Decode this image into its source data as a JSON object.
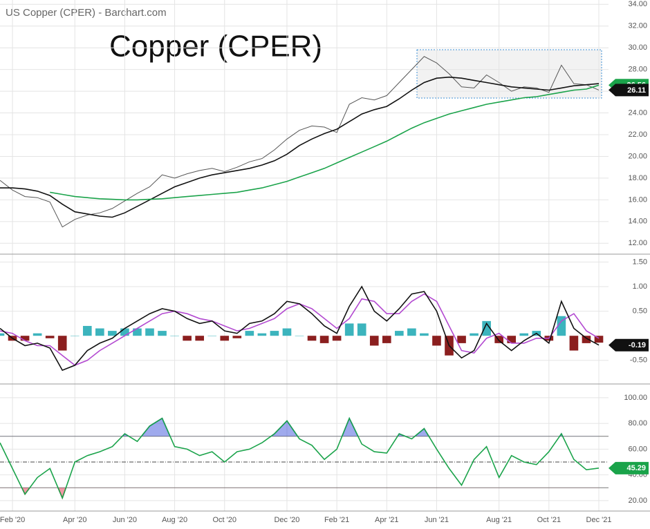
{
  "chart_data": [
    {
      "type": "line",
      "title": "US Copper (CPER) - Barchart.com",
      "annotation": "Copper (CPER)",
      "ylim": [
        11,
        34.4
      ],
      "yticks": [
        {
          "value": 12,
          "label": "12.00"
        },
        {
          "value": 14,
          "label": "14.00"
        },
        {
          "value": 16,
          "label": "16.00"
        },
        {
          "value": 18,
          "label": "18.00"
        },
        {
          "value": 20,
          "label": "20.00"
        },
        {
          "value": 22,
          "label": "22.00"
        },
        {
          "value": 24,
          "label": "24.00"
        },
        {
          "value": 26,
          "label": "26.00"
        },
        {
          "value": 28,
          "label": "28.00"
        },
        {
          "value": 30,
          "label": "30.00"
        },
        {
          "value": 32,
          "label": "32.00"
        },
        {
          "value": 34,
          "label": "34.00"
        }
      ],
      "grid": true,
      "series": [
        {
          "color": "#555555",
          "values": [
            17.8,
            16.9,
            16.3,
            16.2,
            15.8,
            13.5,
            14.2,
            14.6,
            14.8,
            15.2,
            15.9,
            16.6,
            17.2,
            18.3,
            18.0,
            18.4,
            18.7,
            18.9,
            18.6,
            19.0,
            19.5,
            19.8,
            20.6,
            21.6,
            22.4,
            22.8,
            22.7,
            22.2,
            24.8,
            25.4,
            25.2,
            25.6,
            26.8,
            28.0,
            29.2,
            28.6,
            27.6,
            26.4,
            26.3,
            27.5,
            26.8,
            26.0,
            26.4,
            26.3,
            25.9,
            28.4,
            26.7,
            26.6,
            26.11
          ],
          "last_tag_color": "#111111"
        },
        {
          "color": "#111111",
          "values": [
            17.1,
            17.1,
            17.0,
            16.8,
            16.4,
            15.6,
            14.9,
            14.7,
            14.5,
            14.4,
            14.8,
            15.4,
            16.0,
            16.6,
            17.2,
            17.6,
            18.0,
            18.3,
            18.5,
            18.7,
            18.9,
            19.2,
            19.6,
            20.2,
            21.0,
            21.6,
            22.1,
            22.5,
            23.2,
            23.9,
            24.3,
            24.6,
            25.3,
            26.1,
            26.8,
            27.2,
            27.3,
            27.2,
            27.0,
            26.8,
            26.6,
            26.4,
            26.3,
            26.2,
            26.1,
            26.3,
            26.5,
            26.6,
            26.7
          ]
        },
        {
          "color": "#1aa34a",
          "values": [
            null,
            null,
            null,
            null,
            16.7,
            16.5,
            16.3,
            16.2,
            16.1,
            16.05,
            16.0,
            16.0,
            16.05,
            16.1,
            16.2,
            16.3,
            16.4,
            16.5,
            16.6,
            16.7,
            16.9,
            17.1,
            17.4,
            17.7,
            18.1,
            18.5,
            18.9,
            19.4,
            19.9,
            20.4,
            20.9,
            21.4,
            22.0,
            22.6,
            23.1,
            23.5,
            23.9,
            24.2,
            24.5,
            24.8,
            25.0,
            25.2,
            25.4,
            25.5,
            25.7,
            25.9,
            26.1,
            26.2,
            26.56
          ],
          "last_tag_color": "#1aa34a"
        }
      ]
    },
    {
      "type": "line",
      "ylim": [
        -0.98,
        1.66
      ],
      "yticks": [
        {
          "value": -0.5,
          "label": "-0.50"
        },
        {
          "value": 0.5,
          "label": "0.50"
        },
        {
          "value": 1,
          "label": "1.00"
        },
        {
          "value": 1.5,
          "label": "1.50"
        }
      ],
      "grid": true,
      "series": [
        {
          "type": "bar",
          "color": "#3cb4bd",
          "negative_color": "#8b1f1f",
          "values": [
            0.05,
            -0.1,
            -0.1,
            0.05,
            -0.05,
            -0.3,
            0.0,
            0.2,
            0.15,
            0.1,
            0.15,
            0.15,
            0.15,
            0.1,
            0.0,
            -0.1,
            -0.1,
            0.0,
            -0.1,
            -0.05,
            0.1,
            0.05,
            0.1,
            0.15,
            0.0,
            -0.1,
            -0.15,
            -0.1,
            0.25,
            0.25,
            -0.2,
            -0.15,
            0.1,
            0.15,
            0.05,
            -0.2,
            -0.4,
            -0.15,
            0.05,
            0.3,
            -0.15,
            -0.15,
            0.05,
            0.1,
            -0.1,
            0.4,
            -0.3,
            -0.15,
            -0.14
          ]
        },
        {
          "color": "#b34ad1",
          "values": [
            0.1,
            0.05,
            -0.1,
            -0.2,
            -0.2,
            -0.4,
            -0.6,
            -0.5,
            -0.3,
            -0.15,
            0.0,
            0.15,
            0.3,
            0.45,
            0.5,
            0.45,
            0.35,
            0.3,
            0.2,
            0.1,
            0.15,
            0.25,
            0.35,
            0.55,
            0.65,
            0.55,
            0.35,
            0.15,
            0.35,
            0.75,
            0.7,
            0.45,
            0.45,
            0.7,
            0.85,
            0.7,
            0.2,
            -0.3,
            -0.35,
            -0.05,
            0.05,
            -0.15,
            -0.15,
            -0.05,
            -0.05,
            0.3,
            0.45,
            0.1,
            -0.05
          ]
        },
        {
          "color": "#111111",
          "values": [
            0.15,
            -0.05,
            -0.2,
            -0.15,
            -0.25,
            -0.7,
            -0.6,
            -0.3,
            -0.15,
            -0.05,
            0.15,
            0.3,
            0.45,
            0.55,
            0.5,
            0.35,
            0.25,
            0.3,
            0.1,
            0.05,
            0.25,
            0.3,
            0.45,
            0.7,
            0.65,
            0.45,
            0.2,
            0.05,
            0.6,
            1.0,
            0.5,
            0.3,
            0.55,
            0.85,
            0.9,
            0.5,
            -0.2,
            -0.45,
            -0.3,
            0.25,
            -0.1,
            -0.3,
            -0.1,
            0.05,
            -0.15,
            0.7,
            0.15,
            -0.05,
            -0.19
          ],
          "last_tag_color": "#111111"
        }
      ]
    },
    {
      "type": "line",
      "ylim": [
        11.9,
        110.7
      ],
      "yticks": [
        {
          "value": 20,
          "label": "20.00"
        },
        {
          "value": 40,
          "label": "40.00"
        },
        {
          "value": 60,
          "label": "60.00"
        },
        {
          "value": 80,
          "label": "80.00"
        },
        {
          "value": 100,
          "label": "100.00"
        }
      ],
      "grid": true,
      "overbought": 70,
      "oversold": 30,
      "midline": 50,
      "overbought_color": "#2b43d8",
      "oversold_color": "#e3203c",
      "categories": [
        null,
        "Feb '20",
        null,
        null,
        null,
        null,
        "Apr '20",
        null,
        null,
        null,
        "Jun '20",
        null,
        null,
        null,
        "Aug '20",
        null,
        null,
        null,
        "Oct '20",
        null,
        null,
        null,
        null,
        "Dec '20",
        null,
        null,
        null,
        "Feb '21",
        null,
        null,
        null,
        "Apr '21",
        null,
        null,
        null,
        "Jun '21",
        null,
        null,
        null,
        null,
        "Aug '21",
        null,
        null,
        null,
        "Oct '21",
        null,
        null,
        null,
        "Dec '21"
      ],
      "series": [
        {
          "color": "#1aa34a",
          "values": [
            65,
            45,
            25,
            38,
            45,
            22,
            50,
            55,
            58,
            62,
            72,
            66,
            78,
            84,
            62,
            60,
            55,
            58,
            50,
            58,
            60,
            65,
            72,
            82,
            68,
            63,
            52,
            60,
            84,
            64,
            58,
            57,
            72,
            68,
            76,
            60,
            45,
            32,
            52,
            62,
            38,
            55,
            50,
            48,
            58,
            72,
            52,
            44,
            45.29
          ],
          "last_tag_color": "#1aa34a"
        }
      ]
    }
  ]
}
